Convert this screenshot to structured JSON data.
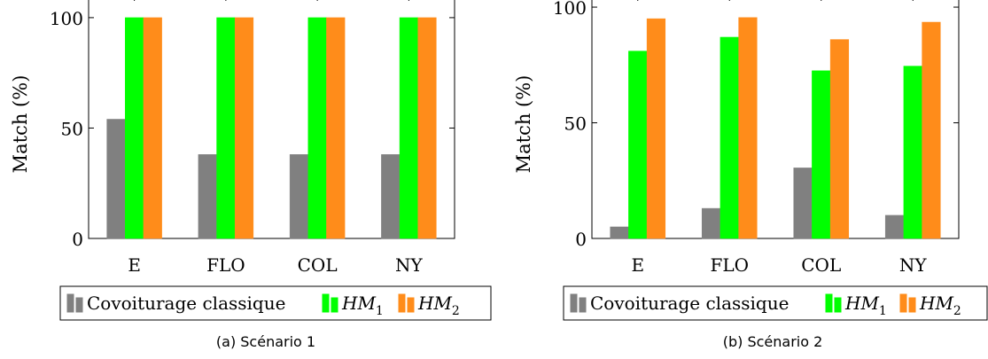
{
  "colors": {
    "series": [
      "#808080",
      "#00ff00",
      "#ff8c1a"
    ],
    "stroke": "#000000"
  },
  "legend": {
    "items": [
      {
        "text": "Covoiturage classique"
      },
      {
        "text": "HM",
        "sub": "1"
      },
      {
        "text": "HM",
        "sub": "2"
      }
    ]
  },
  "chart_data": [
    {
      "type": "bar",
      "caption": "(a) Scénario 1",
      "ylabel": "Match (%)",
      "categories": [
        "E",
        "FLO",
        "COL",
        "NY"
      ],
      "series": [
        {
          "name": "Covoiturage classique",
          "values": [
            54,
            38,
            38,
            38
          ]
        },
        {
          "name": "HM1",
          "values": [
            100,
            100,
            100,
            100
          ]
        },
        {
          "name": "HM2",
          "values": [
            100,
            100,
            100,
            100
          ]
        }
      ],
      "ylim": [
        0,
        110
      ],
      "yticks": [
        0,
        50,
        100
      ],
      "grid": false
    },
    {
      "type": "bar",
      "caption": "(b) Scénario 2",
      "ylabel": "Match (%)",
      "categories": [
        "E",
        "FLO",
        "COL",
        "NY"
      ],
      "series": [
        {
          "name": "Covoiturage classique",
          "values": [
            5,
            13,
            30.5,
            10
          ]
        },
        {
          "name": "HM1",
          "values": [
            81,
            87,
            72.5,
            74.5
          ]
        },
        {
          "name": "HM2",
          "values": [
            95,
            95.5,
            86,
            93.5
          ]
        }
      ],
      "ylim": [
        0,
        105
      ],
      "yticks": [
        0,
        50,
        100
      ],
      "grid": false
    }
  ]
}
